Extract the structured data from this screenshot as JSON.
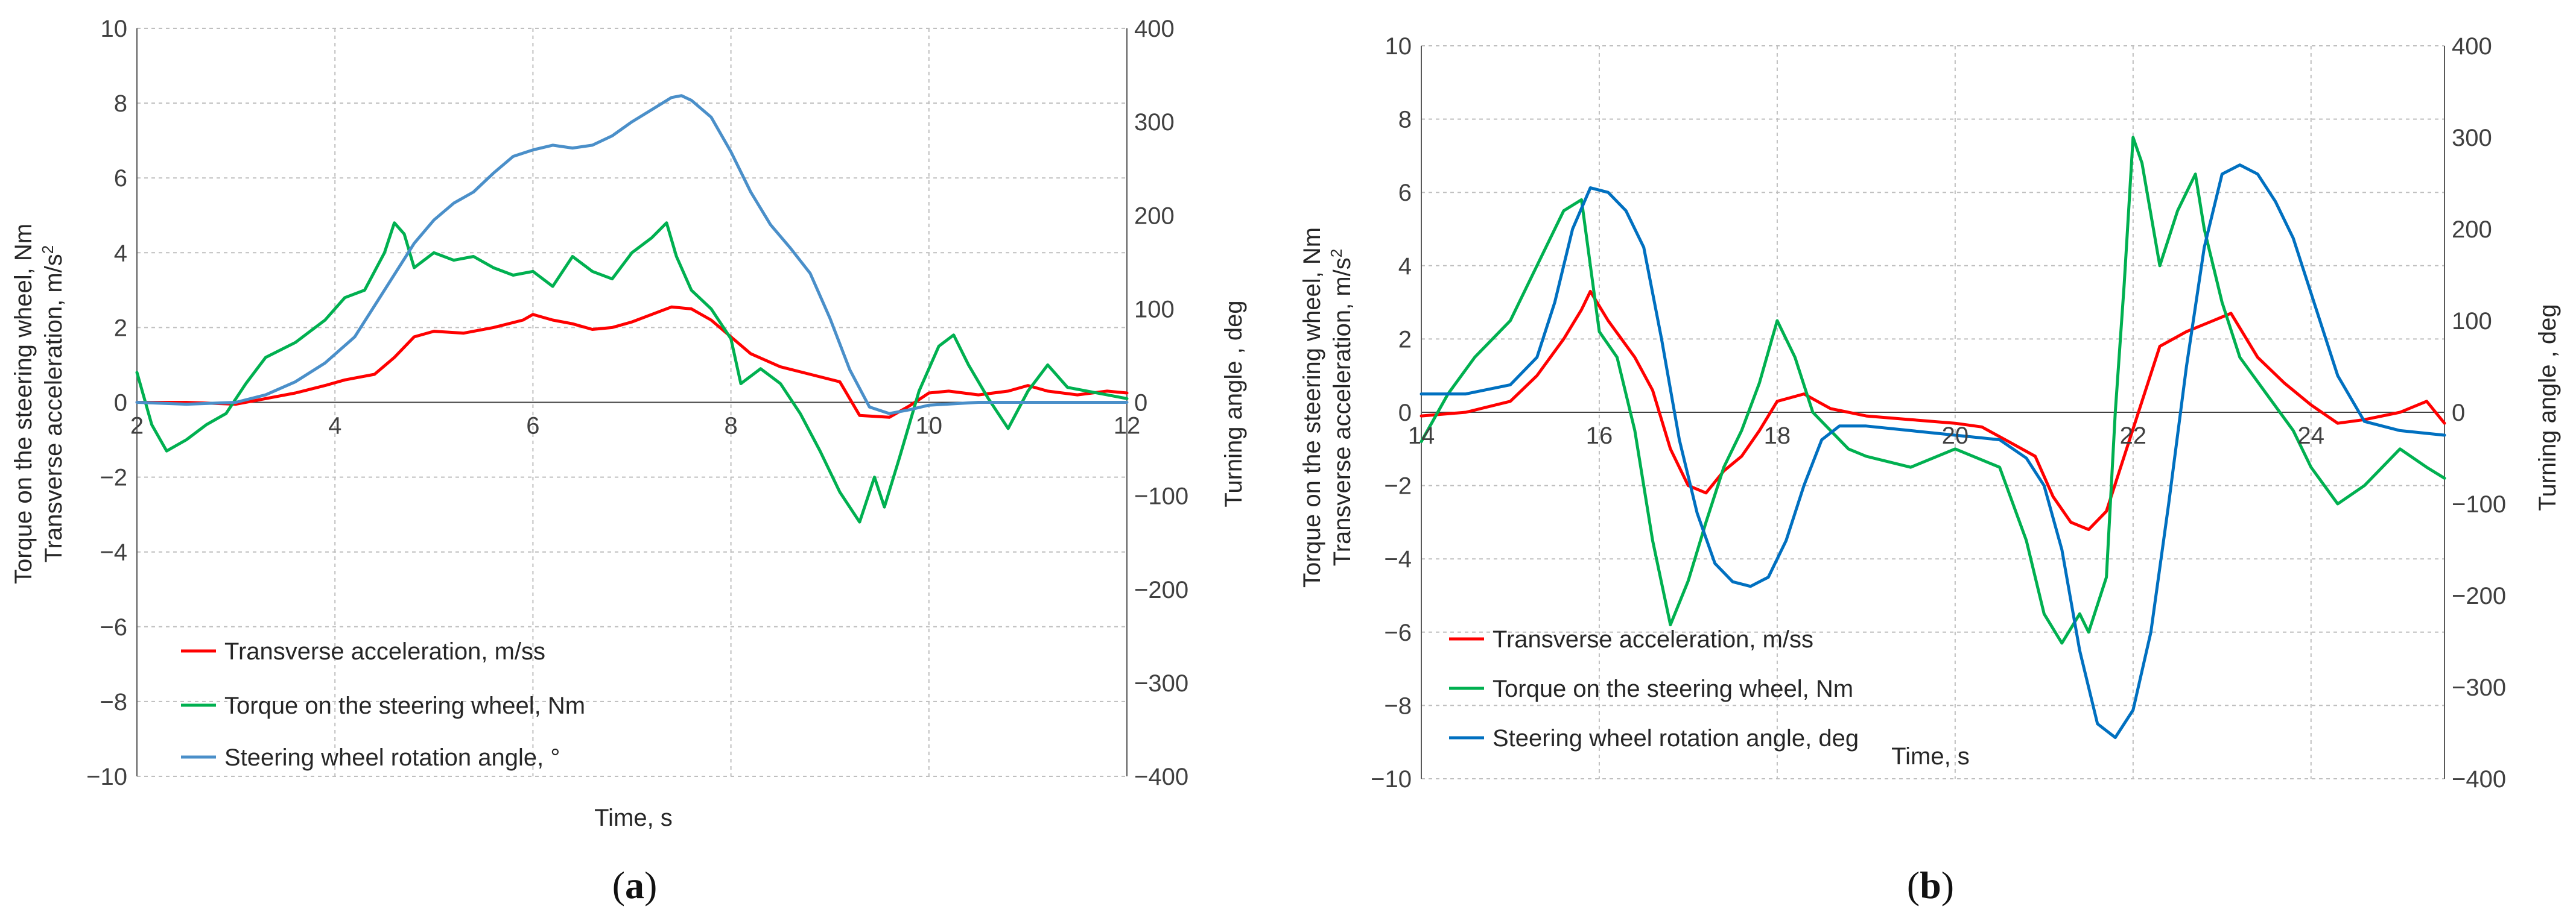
{
  "chart_data": [
    {
      "panel_label_parts": [
        "(",
        "a",
        ")"
      ],
      "type": "line",
      "xlabel": "Time, s",
      "ylabel_left": [
        "Torque on the steering wheel, Nm",
        "Transverse acceleration, m/s",
        "2"
      ],
      "ylabel_right": "Turning angle , deg",
      "xlim": [
        2,
        12
      ],
      "ylim_left": [
        -10,
        10
      ],
      "ylim_right": [
        -400,
        400
      ],
      "x_ticks": [
        "2",
        "4",
        "6",
        "8",
        "10",
        "12"
      ],
      "y_ticks_left": [
        "−10",
        "−8",
        "−6",
        "−4",
        "−2",
        "0",
        "2",
        "4",
        "6",
        "8",
        "10"
      ],
      "y_ticks_right": [
        "−400",
        "−300",
        "−200",
        "−100",
        "0",
        "100",
        "200",
        "300",
        "400"
      ],
      "grid": true,
      "legend_position": "lower-left",
      "series": [
        {
          "name": "Transverse acceleration, m/ss",
          "color": "#ff0000",
          "axis": "left",
          "x": [
            2.0,
            2.5,
            3.0,
            3.3,
            3.6,
            3.9,
            4.1,
            4.4,
            4.6,
            4.8,
            5.0,
            5.3,
            5.6,
            5.9,
            6.0,
            6.2,
            6.4,
            6.6,
            6.8,
            7.0,
            7.2,
            7.4,
            7.6,
            7.8,
            8.0,
            8.2,
            8.5,
            8.8,
            9.1,
            9.3,
            9.6,
            9.8,
            10.0,
            10.2,
            10.5,
            10.8,
            11.0,
            11.2,
            11.5,
            11.8,
            12.0
          ],
          "y": [
            0.0,
            0.0,
            -0.05,
            0.1,
            0.25,
            0.45,
            0.6,
            0.75,
            1.2,
            1.75,
            1.9,
            1.85,
            2.0,
            2.2,
            2.35,
            2.2,
            2.1,
            1.95,
            2.0,
            2.15,
            2.35,
            2.55,
            2.5,
            2.2,
            1.75,
            1.3,
            0.95,
            0.75,
            0.55,
            -0.35,
            -0.4,
            -0.1,
            0.25,
            0.3,
            0.2,
            0.3,
            0.45,
            0.3,
            0.2,
            0.3,
            0.25
          ]
        },
        {
          "name": "Torque on the steering wheel, Nm",
          "color": "#00b050",
          "axis": "left",
          "x": [
            2.0,
            2.15,
            2.3,
            2.5,
            2.7,
            2.9,
            3.1,
            3.3,
            3.6,
            3.9,
            4.1,
            4.3,
            4.5,
            4.6,
            4.7,
            4.8,
            5.0,
            5.2,
            5.4,
            5.6,
            5.8,
            6.0,
            6.2,
            6.4,
            6.6,
            6.8,
            7.0,
            7.2,
            7.35,
            7.45,
            7.6,
            7.8,
            8.0,
            8.1,
            8.3,
            8.5,
            8.7,
            8.9,
            9.1,
            9.3,
            9.45,
            9.55,
            9.7,
            9.9,
            10.1,
            10.25,
            10.4,
            10.6,
            10.8,
            11.0,
            11.2,
            11.4,
            11.6,
            11.8,
            12.0
          ],
          "y": [
            0.8,
            -0.6,
            -1.3,
            -1.0,
            -0.6,
            -0.3,
            0.5,
            1.2,
            1.6,
            2.2,
            2.8,
            3.0,
            4.0,
            4.8,
            4.5,
            3.6,
            4.0,
            3.8,
            3.9,
            3.6,
            3.4,
            3.5,
            3.1,
            3.9,
            3.5,
            3.3,
            4.0,
            4.4,
            4.8,
            3.9,
            3.0,
            2.5,
            1.7,
            0.5,
            0.9,
            0.5,
            -0.3,
            -1.3,
            -2.4,
            -3.2,
            -2.0,
            -2.8,
            -1.5,
            0.3,
            1.5,
            1.8,
            1.0,
            0.1,
            -0.7,
            0.3,
            1.0,
            0.4,
            0.3,
            0.2,
            0.1
          ]
        },
        {
          "name": "Steering wheel rotation angle, °",
          "color": "#4a8fc9",
          "axis": "right",
          "x": [
            2.0,
            2.5,
            3.0,
            3.3,
            3.6,
            3.9,
            4.2,
            4.5,
            4.8,
            5.0,
            5.2,
            5.4,
            5.6,
            5.8,
            6.0,
            6.2,
            6.4,
            6.6,
            6.8,
            7.0,
            7.2,
            7.4,
            7.5,
            7.6,
            7.8,
            8.0,
            8.2,
            8.4,
            8.6,
            8.8,
            9.0,
            9.2,
            9.4,
            9.6,
            9.8,
            10.0,
            10.5,
            11.0,
            11.5,
            12.0
          ],
          "y": [
            0,
            -2,
            0,
            8,
            22,
            42,
            70,
            120,
            170,
            195,
            213,
            225,
            245,
            263,
            270,
            275,
            272,
            275,
            285,
            300,
            313,
            326,
            328,
            323,
            305,
            268,
            225,
            190,
            165,
            138,
            90,
            35,
            -5,
            -12,
            -8,
            -3,
            0,
            0,
            0,
            0
          ]
        }
      ]
    },
    {
      "panel_label_parts": [
        "(",
        "b",
        ")"
      ],
      "type": "line",
      "xlabel": "Time, s",
      "ylabel_left": [
        "Torque on the steering wheel, Nm",
        "Transverse acceleration, m/s",
        "2"
      ],
      "ylabel_right": "Turning angle , deg",
      "xlim": [
        14,
        25.5
      ],
      "ylim_left": [
        -10,
        10
      ],
      "ylim_right": [
        -400,
        400
      ],
      "x_ticks": [
        "14",
        "16",
        "18",
        "20",
        "22",
        "24"
      ],
      "x_tick_values": [
        14,
        16,
        18,
        20,
        22,
        24
      ],
      "y_ticks_left": [
        "−10",
        "−8",
        "−6",
        "−4",
        "−2",
        "0",
        "2",
        "4",
        "6",
        "8",
        "10"
      ],
      "y_ticks_right": [
        "−400",
        "−300",
        "−200",
        "−100",
        "0",
        "100",
        "200",
        "300",
        "400"
      ],
      "grid": true,
      "legend_position": "lower-left",
      "series": [
        {
          "name": "Transverse acceleration, m/ss",
          "color": "#ff0000",
          "axis": "left",
          "x": [
            14.0,
            14.5,
            15.0,
            15.3,
            15.6,
            15.8,
            15.9,
            16.1,
            16.4,
            16.6,
            16.8,
            17.0,
            17.2,
            17.4,
            17.6,
            17.8,
            18.0,
            18.3,
            18.6,
            19.0,
            19.5,
            20.0,
            20.3,
            20.6,
            20.9,
            21.1,
            21.3,
            21.5,
            21.7,
            21.9,
            22.1,
            22.3,
            22.6,
            22.9,
            23.1,
            23.4,
            23.7,
            24.0,
            24.3,
            24.6,
            25.0,
            25.3,
            25.5
          ],
          "y": [
            -0.1,
            0.0,
            0.3,
            1.0,
            2.0,
            2.8,
            3.3,
            2.5,
            1.5,
            0.6,
            -1.0,
            -2.0,
            -2.2,
            -1.6,
            -1.2,
            -0.5,
            0.3,
            0.5,
            0.1,
            -0.1,
            -0.2,
            -0.3,
            -0.4,
            -0.8,
            -1.2,
            -2.3,
            -3.0,
            -3.2,
            -2.7,
            -1.2,
            0.3,
            1.8,
            2.2,
            2.5,
            2.7,
            1.5,
            0.8,
            0.2,
            -0.3,
            -0.2,
            0.0,
            0.3,
            -0.3
          ]
        },
        {
          "name": "Torque on the steering wheel, Nm",
          "color": "#00b050",
          "axis": "left",
          "x": [
            14.0,
            14.3,
            14.6,
            15.0,
            15.3,
            15.6,
            15.8,
            16.0,
            16.2,
            16.4,
            16.6,
            16.8,
            17.0,
            17.2,
            17.4,
            17.6,
            17.8,
            18.0,
            18.2,
            18.4,
            18.6,
            18.8,
            19.0,
            19.5,
            20.0,
            20.5,
            20.8,
            21.0,
            21.2,
            21.4,
            21.5,
            21.7,
            21.8,
            21.9,
            22.0,
            22.1,
            22.3,
            22.5,
            22.7,
            22.8,
            23.0,
            23.2,
            23.5,
            23.8,
            24.0,
            24.3,
            24.6,
            25.0,
            25.3,
            25.5
          ],
          "y": [
            -0.8,
            0.5,
            1.5,
            2.5,
            4.0,
            5.5,
            5.8,
            2.2,
            1.5,
            -0.5,
            -3.5,
            -5.8,
            -4.6,
            -3.0,
            -1.5,
            -0.5,
            0.8,
            2.5,
            1.5,
            0.0,
            -0.5,
            -1.0,
            -1.2,
            -1.5,
            -1.0,
            -1.5,
            -3.5,
            -5.5,
            -6.3,
            -5.5,
            -6.0,
            -4.5,
            0.0,
            3.5,
            7.5,
            6.8,
            4.0,
            5.5,
            6.5,
            5.0,
            3.0,
            1.5,
            0.5,
            -0.5,
            -1.5,
            -2.5,
            -2.0,
            -1.0,
            -1.5,
            -1.8
          ]
        },
        {
          "name": "Steering wheel rotation angle, deg",
          "color": "#0070c0",
          "axis": "right",
          "x": [
            14.0,
            14.5,
            15.0,
            15.3,
            15.5,
            15.7,
            15.9,
            16.1,
            16.3,
            16.5,
            16.7,
            16.9,
            17.1,
            17.3,
            17.5,
            17.7,
            17.9,
            18.1,
            18.3,
            18.5,
            18.7,
            19.0,
            19.5,
            20.0,
            20.5,
            20.8,
            21.0,
            21.2,
            21.4,
            21.6,
            21.8,
            22.0,
            22.2,
            22.4,
            22.6,
            22.8,
            23.0,
            23.2,
            23.4,
            23.6,
            23.8,
            24.0,
            24.3,
            24.6,
            25.0,
            25.5
          ],
          "y": [
            20,
            20,
            30,
            60,
            120,
            200,
            245,
            240,
            220,
            180,
            80,
            -30,
            -110,
            -165,
            -185,
            -190,
            -180,
            -140,
            -80,
            -30,
            -15,
            -15,
            -20,
            -25,
            -30,
            -50,
            -80,
            -150,
            -260,
            -340,
            -355,
            -325,
            -240,
            -100,
            50,
            180,
            260,
            270,
            260,
            230,
            190,
            130,
            40,
            -10,
            -20,
            -25
          ]
        }
      ]
    }
  ]
}
